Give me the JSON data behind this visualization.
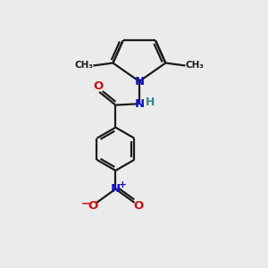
{
  "bg_color": "#ebebeb",
  "bond_color": "#1a1a1a",
  "line_width": 1.6,
  "figsize": [
    3.0,
    3.0
  ],
  "dpi": 100,
  "xlim": [
    0,
    10
  ],
  "ylim": [
    0,
    10
  ],
  "N_color": "#1111cc",
  "O_color": "#cc1111",
  "H_color": "#2d8b8b",
  "C_color": "#1a1a1a",
  "font_size_atom": 9.5,
  "font_size_small": 8.0
}
